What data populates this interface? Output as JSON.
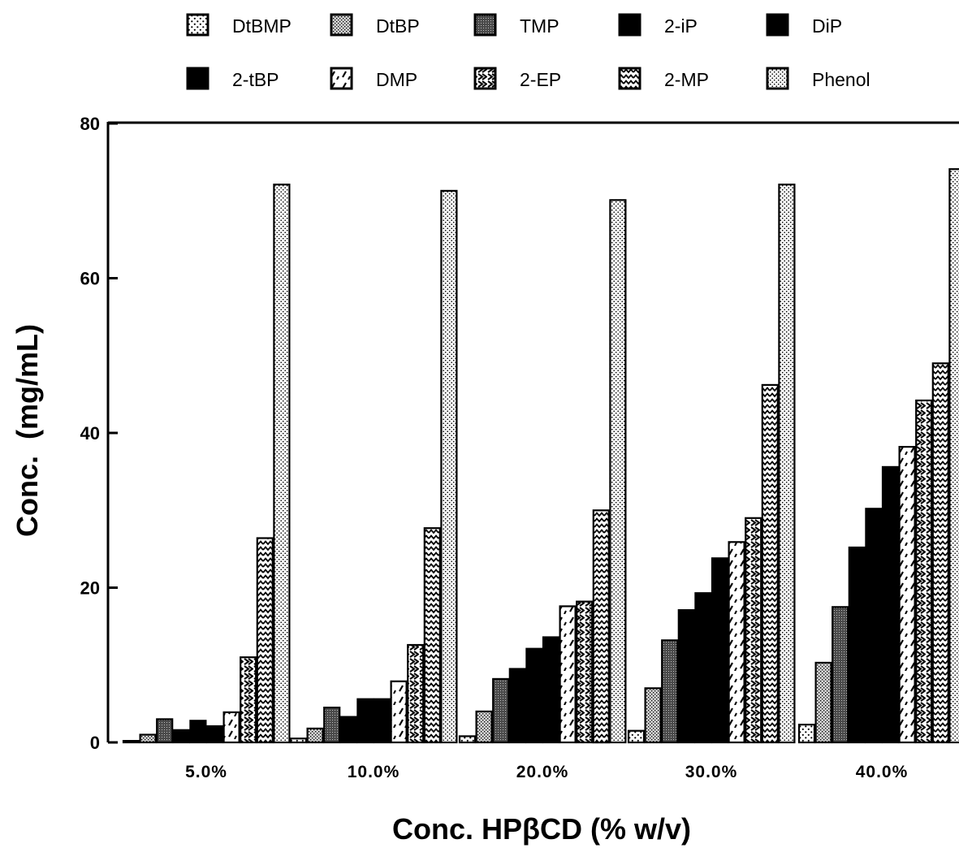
{
  "chart_data": {
    "type": "bar",
    "title": "",
    "xlabel": "Conc. HPβCD (% w/v)",
    "ylabel": "Conc.  (mg/mL)",
    "ylim": [
      0,
      80
    ],
    "yticks": [
      "0",
      "20",
      "40",
      "60",
      "80"
    ],
    "grid": false,
    "legend_position": "top",
    "categories": [
      "5.0%",
      "10.0%",
      "20.0%",
      "30.0%",
      "40.0%"
    ],
    "series": [
      {
        "name": "DtBMP",
        "values": [
          0.2,
          0.5,
          0.8,
          1.5,
          2.3
        ]
      },
      {
        "name": "DtBP",
        "values": [
          1.0,
          1.8,
          4.0,
          7.0,
          10.3
        ]
      },
      {
        "name": "TMP",
        "values": [
          3.0,
          4.5,
          8.2,
          13.2,
          17.5
        ]
      },
      {
        "name": "2-iP",
        "values": [
          1.6,
          3.3,
          9.5,
          17.1,
          25.2
        ]
      },
      {
        "name": "DiP",
        "values": [
          2.8,
          5.6,
          12.1,
          19.3,
          30.2
        ]
      },
      {
        "name": "2-tBP",
        "values": [
          2.1,
          5.6,
          13.6,
          23.8,
          35.6
        ]
      },
      {
        "name": "DMP",
        "values": [
          3.9,
          7.9,
          17.6,
          25.9,
          38.2
        ]
      },
      {
        "name": "2-EP",
        "values": [
          11.0,
          12.6,
          18.2,
          29.0,
          44.2
        ]
      },
      {
        "name": "2-MP",
        "values": [
          26.4,
          27.7,
          30.0,
          46.2,
          49.0
        ]
      },
      {
        "name": "Phenol",
        "values": [
          72.1,
          71.3,
          70.1,
          72.1,
          74.1
        ]
      }
    ],
    "colors": {
      "ink": "#000000",
      "paper": "#ffffff"
    },
    "patterns": [
      "dots-sparse",
      "dense-stipple",
      "dark-stipple",
      "solid",
      "solid",
      "solid",
      "slash-dashes",
      "chevrons",
      "zigzag-dense",
      "dots-fine"
    ]
  }
}
